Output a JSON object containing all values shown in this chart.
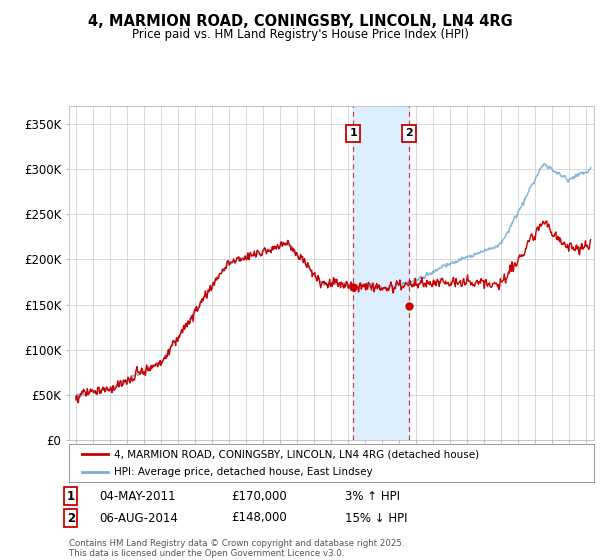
{
  "title": "4, MARMION ROAD, CONINGSBY, LINCOLN, LN4 4RG",
  "subtitle": "Price paid vs. HM Land Registry's House Price Index (HPI)",
  "ylabel_ticks": [
    "£0",
    "£50K",
    "£100K",
    "£150K",
    "£200K",
    "£250K",
    "£300K",
    "£350K"
  ],
  "ytick_vals": [
    0,
    50000,
    100000,
    150000,
    200000,
    250000,
    300000,
    350000
  ],
  "ylim": [
    0,
    370000
  ],
  "xlim_start": 1994.6,
  "xlim_end": 2025.5,
  "transaction1": {
    "date_num": 2011.34,
    "price": 170000,
    "label": "1",
    "date_str": "04-MAY-2011",
    "pct": "3%",
    "dir": "↑"
  },
  "transaction2": {
    "date_num": 2014.59,
    "price": 148000,
    "label": "2",
    "date_str": "06-AUG-2014",
    "pct": "15%",
    "dir": "↓"
  },
  "legend_property": "4, MARMION ROAD, CONINGSBY, LINCOLN, LN4 4RG (detached house)",
  "legend_hpi": "HPI: Average price, detached house, East Lindsey",
  "footer": "Contains HM Land Registry data © Crown copyright and database right 2025.\nThis data is licensed under the Open Government Licence v3.0.",
  "property_color": "#cc0000",
  "hpi_color": "#7bafd4",
  "highlight_color": "#ddeeff",
  "grid_color": "#cccccc",
  "background_color": "#ffffff"
}
